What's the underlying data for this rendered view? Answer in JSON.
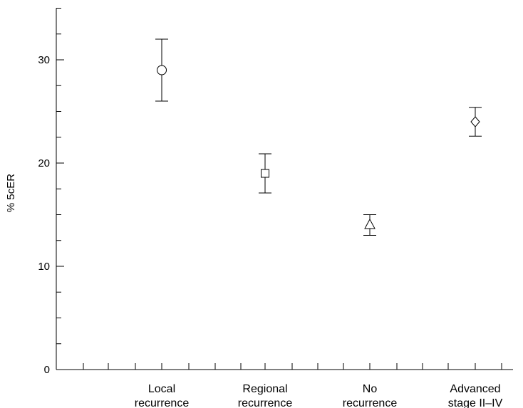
{
  "chart_data": {
    "type": "scatter",
    "ylabel": "% 5cER",
    "ylim": [
      0,
      35
    ],
    "yticks": [
      0,
      10,
      20,
      30
    ],
    "grid": false,
    "categories": [
      {
        "lines": [
          "Local",
          "recurrence"
        ],
        "marker": "circle",
        "value": 29,
        "lower": 26,
        "upper": 32
      },
      {
        "lines": [
          "Regional",
          "recurrence"
        ],
        "marker": "square",
        "value": 19,
        "lower": 17.1,
        "upper": 20.9
      },
      {
        "lines": [
          "No",
          "recurrence"
        ],
        "marker": "triangle",
        "value": 14,
        "lower": 13,
        "upper": 15
      },
      {
        "lines": [
          "Advanced",
          "stage II–IV"
        ],
        "marker": "diamond",
        "value": 24,
        "lower": 22.6,
        "upper": 25.4
      }
    ]
  }
}
